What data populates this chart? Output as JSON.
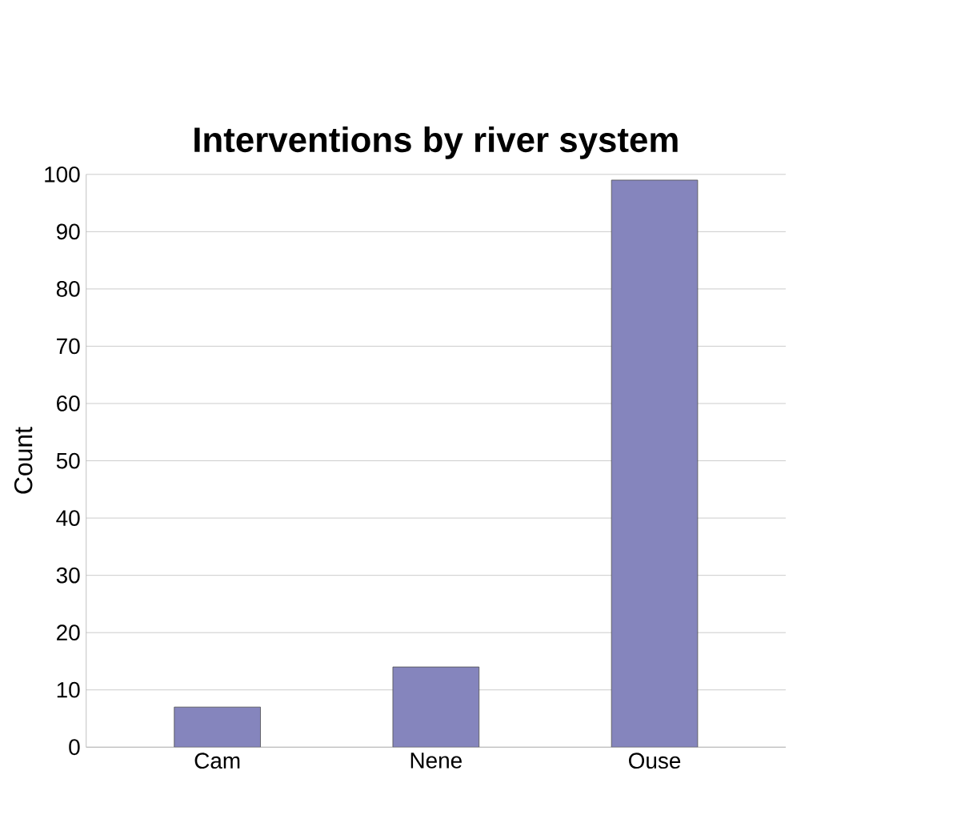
{
  "chart_data": {
    "type": "bar",
    "title": "Interventions by river system",
    "ylabel": "Count",
    "categories": [
      "Cam",
      "Nene",
      "Ouse"
    ],
    "values": [
      7,
      14,
      99
    ],
    "color": "#8585bd",
    "ylim": [
      0,
      100
    ],
    "yticks": [
      0,
      10,
      20,
      30,
      40,
      50,
      60,
      70,
      80,
      90,
      100
    ],
    "grid": "y"
  }
}
